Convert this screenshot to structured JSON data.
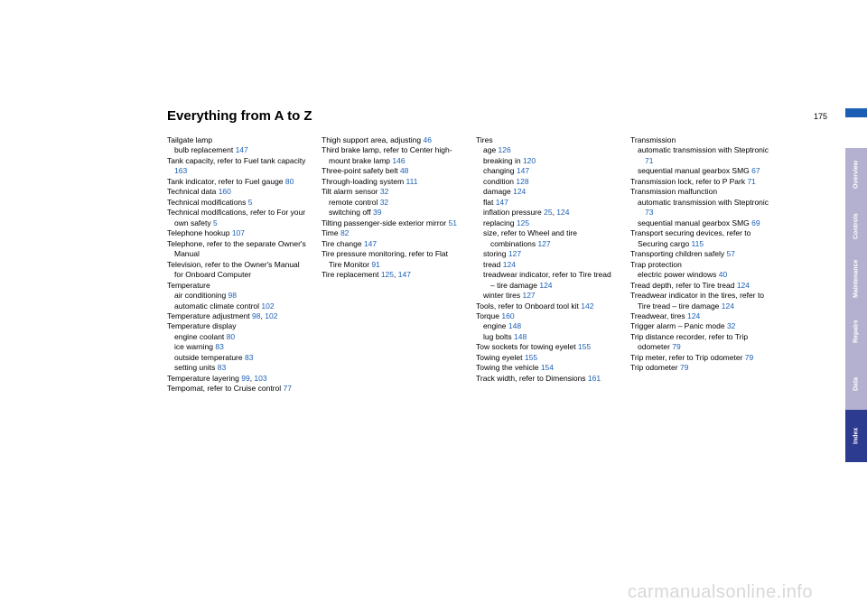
{
  "title": "Everything from A to Z",
  "page_number": "175",
  "watermark": "carmanualsonline.info",
  "colors": {
    "link": "#1b5fb4",
    "bar": "#1b5fb4",
    "tab_inactive": "#b3b1cf",
    "tab_active": "#2c3a8f",
    "watermark": "#d8d8d8"
  },
  "tabs": [
    {
      "label": "Overview",
      "active": false
    },
    {
      "label": "Controls",
      "active": false
    },
    {
      "label": "Maintenance",
      "active": false
    },
    {
      "label": "Repairs",
      "active": false
    },
    {
      "label": "Data",
      "active": false
    },
    {
      "label": "Index",
      "active": true
    }
  ],
  "columns": [
    [
      {
        "t": "Tailgate lamp"
      },
      {
        "t": "bulb replacement ",
        "p": "147",
        "sub": true
      },
      {
        "t": "Tank capacity, refer to Fuel tank capacity ",
        "p": "163",
        "hang": true
      },
      {
        "t": "Tank indicator, refer to Fuel gauge ",
        "p": "80",
        "hang": true
      },
      {
        "t": "Technical data ",
        "p": "160"
      },
      {
        "t": "Technical modifications ",
        "p": "5"
      },
      {
        "t": "Technical modifications, refer to For your own safety ",
        "p": "5",
        "hang": true
      },
      {
        "t": "Telephone hookup ",
        "p": "107"
      },
      {
        "t": "Telephone, refer to the separate Owner's Manual",
        "hang": true
      },
      {
        "t": "Television, refer to the Owner's Manual for Onboard Computer",
        "hang": true
      },
      {
        "t": "Temperature"
      },
      {
        "t": "air conditioning ",
        "p": "98",
        "sub": true
      },
      {
        "t": "automatic climate control ",
        "p": "102",
        "sub": true,
        "hang": true
      },
      {
        "t": "Temperature adjustment ",
        "pmulti": [
          "98",
          "102"
        ],
        "hang": true
      },
      {
        "t": "Temperature display"
      },
      {
        "t": "engine coolant ",
        "p": "80",
        "sub": true
      },
      {
        "t": "ice warning ",
        "p": "83",
        "sub": true
      },
      {
        "t": "outside temperature ",
        "p": "83",
        "sub": true
      },
      {
        "t": "setting units ",
        "p": "83",
        "sub": true
      },
      {
        "t": "Temperature layering ",
        "pmulti": [
          "99",
          "103"
        ],
        "hang": true
      },
      {
        "t": "Tempomat, refer to Cruise control ",
        "p": "77",
        "hang": true
      }
    ],
    [
      {
        "t": "Thigh support area, adjusting ",
        "p": "46",
        "hang": true
      },
      {
        "t": "Third brake lamp, refer to Center high-mount brake lamp ",
        "p": "146",
        "hang": true
      },
      {
        "t": "Three-point safety belt ",
        "p": "48"
      },
      {
        "t": "Through-loading system ",
        "p": "111"
      },
      {
        "t": "Tilt alarm sensor ",
        "p": "32"
      },
      {
        "t": "remote control ",
        "p": "32",
        "sub": true
      },
      {
        "t": "switching off ",
        "p": "39",
        "sub": true
      },
      {
        "t": "Tilting passenger-side exterior mirror ",
        "p": "51",
        "hang": true
      },
      {
        "t": "Time ",
        "p": "82"
      },
      {
        "t": "Tire change ",
        "p": "147"
      },
      {
        "t": "Tire pressure monitoring, refer to Flat Tire Monitor ",
        "p": "91",
        "hang": true
      },
      {
        "t": "Tire replacement ",
        "pmulti": [
          "125",
          "147"
        ]
      }
    ],
    [
      {
        "t": "Tires"
      },
      {
        "t": "age ",
        "p": "126",
        "sub": true
      },
      {
        "t": "breaking in ",
        "p": "120",
        "sub": true
      },
      {
        "t": "changing ",
        "p": "147",
        "sub": true
      },
      {
        "t": "condition ",
        "p": "128",
        "sub": true
      },
      {
        "t": "damage ",
        "p": "124",
        "sub": true
      },
      {
        "t": "flat ",
        "p": "147",
        "sub": true
      },
      {
        "t": "inflation pressure ",
        "pmulti": [
          "25",
          "124"
        ],
        "sub": true
      },
      {
        "t": "replacing ",
        "p": "125",
        "sub": true
      },
      {
        "t": "size, refer to Wheel and tire combinations ",
        "p": "127",
        "sub": true,
        "hang": true
      },
      {
        "t": "storing ",
        "p": "127",
        "sub": true
      },
      {
        "t": "tread ",
        "p": "124",
        "sub": true
      },
      {
        "t": "treadwear indicator, refer to Tire tread – tire damage ",
        "p": "124",
        "sub": true,
        "hang": true
      },
      {
        "t": "winter tires ",
        "p": "127",
        "sub": true
      },
      {
        "t": "Tools, refer to Onboard tool kit ",
        "p": "142",
        "hang": true
      },
      {
        "t": "Torque ",
        "p": "160"
      },
      {
        "t": "engine ",
        "p": "148",
        "sub": true
      },
      {
        "t": "lug bolts ",
        "p": "148",
        "sub": true
      },
      {
        "t": "Tow sockets for towing eyelet ",
        "p": "155",
        "hang": true
      },
      {
        "t": "Towing eyelet ",
        "p": "155"
      },
      {
        "t": "Towing the vehicle ",
        "p": "154"
      },
      {
        "t": "Track width, refer to Dimensions ",
        "p": "161",
        "hang": true
      }
    ],
    [
      {
        "t": "Transmission"
      },
      {
        "t": "automatic transmission with Steptronic ",
        "p": "71",
        "sub": true,
        "hang": true
      },
      {
        "t": "sequential manual gearbox SMG ",
        "p": "67",
        "sub": true,
        "hang": true
      },
      {
        "t": "Transmission lock, refer to P Park ",
        "p": "71",
        "hang": true
      },
      {
        "t": "Transmission malfunction"
      },
      {
        "t": "automatic transmission with Steptronic ",
        "p": "73",
        "sub": true,
        "hang": true
      },
      {
        "t": "sequential manual gearbox SMG ",
        "p": "69",
        "sub": true,
        "hang": true
      },
      {
        "t": "Transport securing devices, refer to Securing cargo ",
        "p": "115",
        "hang": true
      },
      {
        "t": "Transporting children safely ",
        "p": "57",
        "hang": true
      },
      {
        "t": "Trap protection"
      },
      {
        "t": "electric power windows ",
        "p": "40",
        "sub": true
      },
      {
        "t": "Tread depth, refer to Tire tread ",
        "p": "124",
        "hang": true
      },
      {
        "t": "Treadwear indicator in the tires, refer to Tire tread – tire damage ",
        "p": "124",
        "hang": true
      },
      {
        "t": "Treadwear, tires ",
        "p": "124"
      },
      {
        "t": "Trigger alarm – Panic mode ",
        "p": "32",
        "hang": true
      },
      {
        "t": "Trip distance recorder, refer to Trip odometer ",
        "p": "79",
        "hang": true
      },
      {
        "t": "Trip meter, refer to Trip odometer ",
        "p": "79",
        "hang": true
      },
      {
        "t": "Trip odometer ",
        "p": "79"
      }
    ]
  ]
}
